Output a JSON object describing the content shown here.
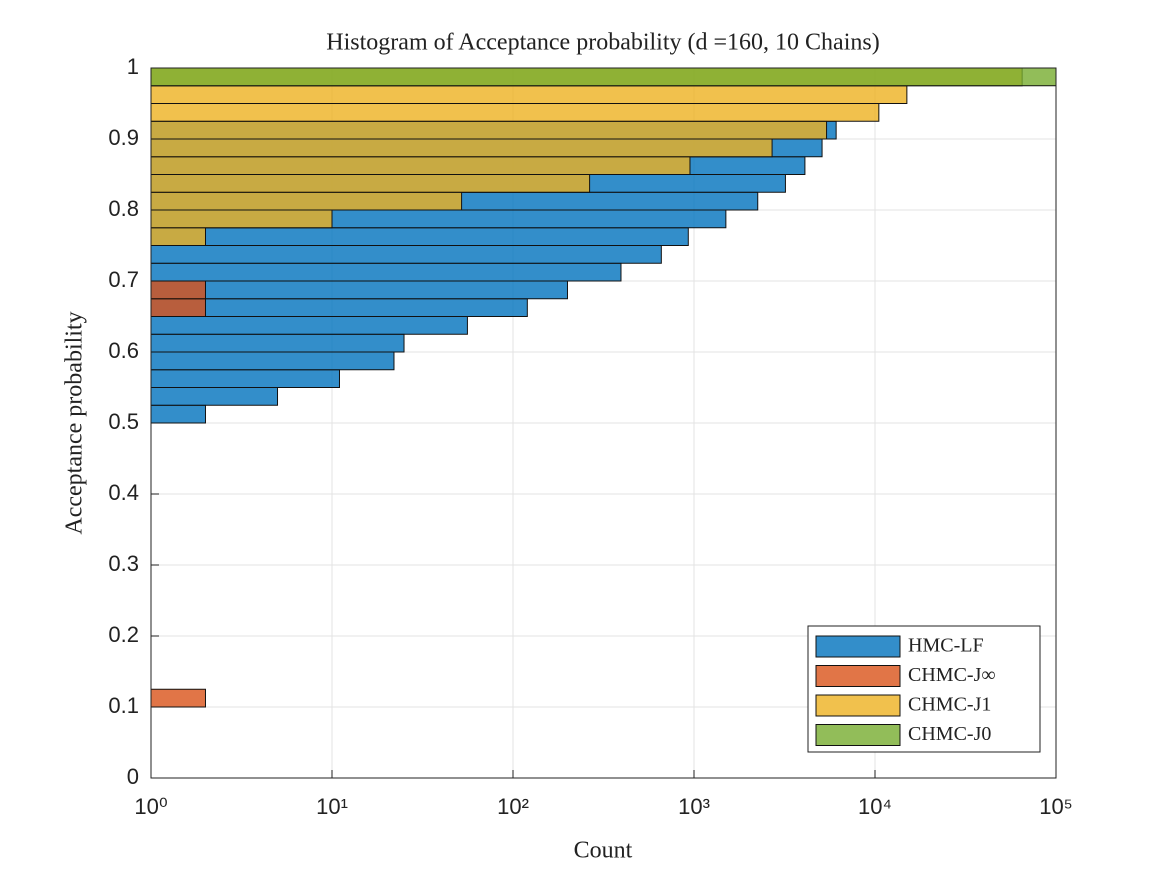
{
  "chart_data": {
    "type": "histogram",
    "orientation": "horizontal",
    "title": "Histogram of Acceptance probability (d =160, 10 Chains)",
    "xlabel": "Count",
    "ylabel": "Acceptance probability",
    "xscale": "log",
    "grid": true,
    "legend": "lower right",
    "xlim": [
      1,
      100000
    ],
    "xticks": [
      {
        "value": 1,
        "label": "10⁰"
      },
      {
        "value": 10,
        "label": "10¹"
      },
      {
        "value": 100,
        "label": "10²"
      },
      {
        "value": 1000,
        "label": "10³"
      },
      {
        "value": 10000,
        "label": "10⁴"
      },
      {
        "value": 100000,
        "label": "10⁵"
      }
    ],
    "ylim": [
      0,
      1
    ],
    "yticks": [
      0,
      0.1,
      0.2,
      0.3,
      0.4,
      0.5,
      0.6,
      0.7,
      0.8,
      0.9,
      1
    ],
    "bins": [
      0,
      0.025,
      0.05,
      0.075,
      0.1,
      0.125,
      0.15,
      0.175,
      0.2,
      0.225,
      0.25,
      0.275,
      0.3,
      0.325,
      0.35,
      0.375,
      0.4,
      0.425,
      0.45,
      0.475,
      0.5,
      0.525,
      0.55,
      0.575,
      0.6,
      0.625,
      0.65,
      0.675,
      0.7,
      0.725,
      0.75,
      0.775,
      0.8,
      0.825,
      0.85,
      0.875,
      0.9,
      0.925,
      0.95,
      0.975,
      1
    ],
    "series": [
      {
        "name": "HMC-LF",
        "color": "#0072bd",
        "values": [
          0,
          0,
          0,
          0,
          0,
          0,
          0,
          0,
          1,
          0,
          0,
          1,
          0,
          0,
          0,
          0,
          1,
          1,
          0,
          0,
          2,
          5,
          11,
          22,
          25,
          56,
          120,
          200,
          395,
          660,
          930,
          1500,
          2250,
          3200,
          4100,
          5100,
          6100,
          0,
          0,
          0
        ]
      },
      {
        "name": "CHMC-J∞",
        "color": "#d95319",
        "values": [
          0,
          0,
          0,
          1,
          2,
          0,
          0,
          0,
          0,
          0,
          0,
          0,
          0,
          0,
          0,
          0,
          0,
          0,
          0,
          0,
          0,
          0,
          0,
          0,
          0,
          0,
          2,
          2,
          0,
          0,
          0,
          0,
          0,
          0,
          0,
          0,
          0,
          0,
          0,
          0
        ]
      },
      {
        "name": "CHMC-J1",
        "color": "#edb120",
        "values": [
          0,
          0,
          0,
          0,
          0,
          0,
          0,
          0,
          0,
          0,
          0,
          0,
          0,
          0,
          0,
          0,
          0,
          0,
          0,
          0,
          0,
          0,
          0,
          0,
          0,
          0,
          0,
          0,
          0,
          0,
          2,
          10,
          52,
          265,
          950,
          2700,
          5400,
          10500,
          15000,
          65000
        ]
      },
      {
        "name": "CHMC-J0",
        "color": "#77ac30",
        "values": [
          0,
          0,
          0,
          0,
          0,
          0,
          0,
          0,
          0,
          0,
          0,
          0,
          0,
          0,
          0,
          0,
          0,
          0,
          0,
          0,
          0,
          0,
          0,
          0,
          0,
          0,
          0,
          0,
          0,
          0,
          0,
          0,
          0,
          0,
          0,
          0,
          0,
          0,
          0,
          100000
        ]
      }
    ]
  }
}
